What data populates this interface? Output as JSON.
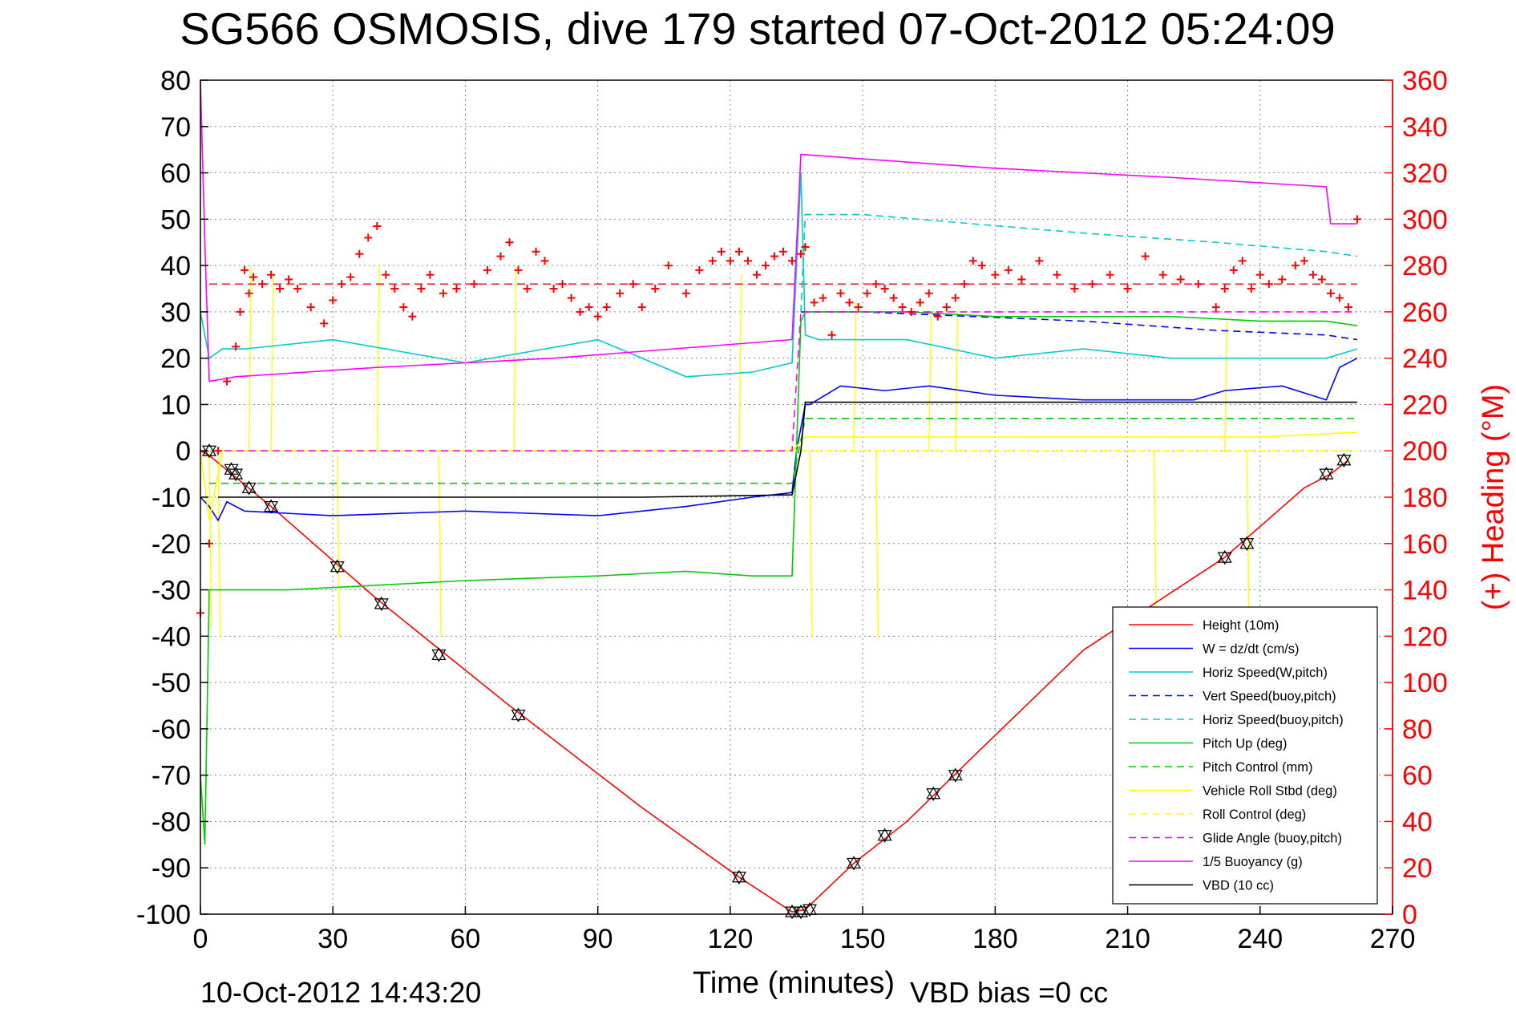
{
  "chart_data": {
    "type": "line",
    "title": "SG566 OSMOSIS, dive 179 started 07-Oct-2012 05:24:09",
    "xlabel": "Time (minutes)",
    "ylabel_right": "(+) Heading (°M)",
    "xlim": [
      0,
      270
    ],
    "ylim_left": [
      -100,
      80
    ],
    "ylim_right": [
      0,
      360
    ],
    "x_ticks": [
      "0",
      "30",
      "60",
      "90",
      "120",
      "150",
      "180",
      "210",
      "240",
      "270"
    ],
    "y_ticks_left": [
      "80",
      "70",
      "60",
      "50",
      "40",
      "30",
      "20",
      "10",
      "0",
      "-10",
      "-20",
      "-30",
      "-40",
      "-50",
      "-60",
      "-70",
      "-80",
      "-90",
      "-100"
    ],
    "y_ticks_right": [
      "360",
      "340",
      "320",
      "300",
      "280",
      "260",
      "240",
      "220",
      "200",
      "180",
      "160",
      "140",
      "120",
      "100",
      "80",
      "60",
      "40",
      "20",
      "0"
    ],
    "grid": true,
    "legend_position": "lower-right",
    "footer_left": "10-Oct-2012 14:43:20",
    "footer_right": "VBD bias =0 cc",
    "series": [
      {
        "name": "Height (10m)",
        "color": "#ff0000",
        "style": "solid",
        "x": [
          0,
          2,
          16,
          40,
          70,
          100,
          122,
          134,
          137,
          148,
          160,
          175,
          200,
          232,
          250,
          256,
          260
        ],
        "y": [
          0,
          -1,
          -12,
          -32,
          -55,
          -77,
          -92,
          -99.5,
          -99,
          -89,
          -80,
          -66,
          -43,
          -23,
          -8,
          -5,
          -2
        ]
      },
      {
        "name": "W = dz/dt (cm/s)",
        "color": "#0000ff",
        "style": "solid",
        "x": [
          0,
          2,
          4,
          6,
          10,
          30,
          60,
          90,
          110,
          125,
          134,
          135,
          137,
          138,
          145,
          155,
          165,
          180,
          200,
          225,
          232,
          245,
          255,
          258,
          262
        ],
        "y": [
          -10,
          -12,
          -15,
          -11,
          -13,
          -14,
          -13,
          -14,
          -12,
          -10,
          -9,
          0,
          10,
          10,
          14,
          13,
          14,
          12,
          11,
          11,
          13,
          14,
          11,
          18,
          20
        ]
      },
      {
        "name": "Horiz Speed(W,pitch)",
        "color": "#00cccc",
        "style": "solid",
        "x": [
          0,
          2,
          5,
          10,
          30,
          60,
          90,
          110,
          125,
          134,
          136,
          137,
          140,
          160,
          180,
          200,
          220,
          240,
          250,
          255,
          262
        ],
        "y": [
          30,
          20,
          22,
          22,
          24,
          19,
          24,
          16,
          17,
          19,
          60,
          25,
          24,
          24,
          20,
          22,
          20,
          20,
          20,
          20,
          22
        ]
      },
      {
        "name": "Vert Speed(buoy,pitch)",
        "color": "#0000ff",
        "style": "dashed",
        "x": [
          136,
          150,
          175,
          200,
          230,
          255,
          262
        ],
        "y": [
          30,
          30,
          29,
          28,
          26,
          25,
          24
        ]
      },
      {
        "name": "Horiz Speed(buoy,pitch)",
        "color": "#00cccc",
        "style": "dashed",
        "x": [
          136,
          137,
          150,
          175,
          200,
          230,
          255,
          262
        ],
        "y": [
          30,
          51,
          51,
          49,
          47,
          45,
          43,
          42
        ]
      },
      {
        "name": "Pitch Up (deg)",
        "color": "#00cc00",
        "style": "solid",
        "x": [
          0,
          1,
          2,
          4,
          8,
          20,
          40,
          60,
          90,
          110,
          125,
          134,
          136,
          137,
          140,
          160,
          180,
          200,
          220,
          240,
          255,
          262
        ],
        "y": [
          -70,
          -85,
          -30,
          -30,
          -30,
          -30,
          -29,
          -28,
          -27,
          -26,
          -27,
          -27,
          28,
          30,
          30,
          30,
          29,
          29,
          29,
          28,
          28,
          27
        ]
      },
      {
        "name": "Pitch Control (mm)",
        "color": "#00cc00",
        "style": "dashed",
        "x": [
          2,
          10,
          60,
          134,
          137,
          200,
          262
        ],
        "y": [
          -7,
          -7,
          -7,
          -7,
          7,
          7,
          7
        ]
      },
      {
        "name": "Vehicle Roll Stbd (deg)",
        "color": "#ffff00",
        "style": "solid",
        "x": [
          0,
          2,
          5,
          10,
          40,
          80,
          120,
          134,
          137,
          160,
          200,
          240,
          262
        ],
        "y": [
          0,
          -15,
          0,
          0,
          0,
          0,
          0,
          0,
          3,
          3,
          3,
          3,
          4
        ]
      },
      {
        "name": "Roll Control (deg)",
        "color": "#ffff00",
        "style": "dashed",
        "x": [
          0,
          262
        ],
        "y": [
          0,
          0
        ]
      },
      {
        "name": "Glide Angle (buoy,pitch)",
        "color": "#ff00ff",
        "style": "dashed",
        "x": [
          0,
          134,
          136,
          262
        ],
        "y": [
          0,
          0,
          30,
          30
        ]
      },
      {
        "name": "1/5 Buoyancy (g)",
        "color": "#ff00ff",
        "style": "solid",
        "x": [
          0,
          1,
          2,
          8,
          40,
          80,
          134,
          136,
          150,
          180,
          220,
          255,
          256,
          262
        ],
        "y": [
          80,
          45,
          15,
          16,
          18,
          20,
          24,
          64,
          63,
          61,
          59,
          57,
          49,
          49
        ]
      },
      {
        "name": "VBD (10 cc)",
        "color": "#000000",
        "style": "solid",
        "x": [
          4,
          10,
          60,
          100,
          134,
          136,
          137,
          262
        ],
        "y": [
          -10,
          -10,
          -10,
          -10,
          -9.5,
          0,
          10.5,
          10.5
        ]
      }
    ],
    "heading_series": {
      "name": "Heading (°M)",
      "color": "#ff0000",
      "marker": "+",
      "x": [
        0,
        2,
        4,
        6,
        8,
        9,
        10,
        11,
        12,
        14,
        16,
        18,
        20,
        22,
        25,
        28,
        30,
        32,
        34,
        36,
        38,
        40,
        42,
        44,
        46,
        48,
        50,
        52,
        55,
        58,
        62,
        65,
        68,
        70,
        72,
        74,
        76,
        78,
        80,
        82,
        84,
        86,
        88,
        90,
        92,
        95,
        98,
        100,
        103,
        106,
        110,
        113,
        116,
        118,
        120,
        122,
        124,
        126,
        128,
        130,
        132,
        134,
        136,
        137,
        139,
        141,
        143,
        145,
        147,
        149,
        151,
        153,
        155,
        157,
        159,
        161,
        163,
        165,
        167,
        169,
        171,
        173,
        175,
        177,
        180,
        183,
        186,
        190,
        194,
        198,
        202,
        206,
        210,
        214,
        218,
        222,
        226,
        230,
        232,
        234,
        236,
        238,
        240,
        242,
        245,
        248,
        250,
        252,
        254,
        256,
        258,
        260,
        262
      ],
      "y": [
        130,
        160,
        200,
        230,
        245,
        260,
        278,
        268,
        275,
        272,
        276,
        270,
        274,
        270,
        262,
        255,
        265,
        272,
        275,
        285,
        292,
        297,
        276,
        270,
        262,
        258,
        270,
        276,
        268,
        270,
        272,
        278,
        284,
        290,
        278,
        270,
        286,
        282,
        270,
        272,
        266,
        260,
        262,
        258,
        262,
        268,
        272,
        262,
        270,
        280,
        268,
        278,
        282,
        286,
        282,
        286,
        282,
        276,
        280,
        284,
        286,
        282,
        285,
        288,
        264,
        266,
        250,
        268,
        264,
        262,
        268,
        272,
        270,
        266,
        262,
        260,
        264,
        268,
        258,
        262,
        266,
        272,
        282,
        280,
        276,
        278,
        274,
        282,
        276,
        270,
        272,
        276,
        270,
        284,
        276,
        274,
        272,
        262,
        270,
        278,
        282,
        270,
        276,
        272,
        274,
        280,
        282,
        276,
        274,
        268,
        266,
        262,
        300
      ]
    },
    "spikes": [
      {
        "x": [
          2,
          2.5
        ],
        "y": [
          0,
          -38
        ],
        "color": "#ffff00"
      },
      {
        "x": [
          4,
          4.5
        ],
        "y": [
          0,
          -40
        ],
        "color": "#ffff00"
      },
      {
        "x": [
          31,
          31.5
        ],
        "y": [
          -1,
          -40
        ],
        "color": "#ffff00"
      },
      {
        "x": [
          54,
          54.5
        ],
        "y": [
          -1,
          -40
        ],
        "color": "#ffff00"
      },
      {
        "x": [
          138,
          138.5
        ],
        "y": [
          0,
          -40
        ],
        "color": "#ffff00"
      },
      {
        "x": [
          153,
          153.5
        ],
        "y": [
          0,
          -40
        ],
        "color": "#ffff00"
      },
      {
        "x": [
          216,
          216.5
        ],
        "y": [
          0,
          -38
        ],
        "color": "#ffff00"
      },
      {
        "x": [
          237,
          237.5
        ],
        "y": [
          0,
          -38
        ],
        "color": "#ffff00"
      },
      {
        "x": [
          11,
          11.5
        ],
        "y": [
          0,
          40
        ],
        "color": "#ffff00"
      },
      {
        "x": [
          16,
          16.5
        ],
        "y": [
          0,
          38
        ],
        "color": "#ffff00"
      },
      {
        "x": [
          40,
          40.5
        ],
        "y": [
          0,
          40
        ],
        "color": "#ffff00"
      },
      {
        "x": [
          71,
          71.5
        ],
        "y": [
          0,
          40
        ],
        "color": "#ffff00"
      },
      {
        "x": [
          122,
          122.5
        ],
        "y": [
          0,
          38
        ],
        "color": "#ffff00"
      },
      {
        "x": [
          148,
          148.5
        ],
        "y": [
          0,
          32
        ],
        "color": "#ffff00"
      },
      {
        "x": [
          165,
          165.5
        ],
        "y": [
          0,
          30
        ],
        "color": "#ffff00"
      },
      {
        "x": [
          171,
          171.5
        ],
        "y": [
          0,
          30
        ],
        "color": "#ffff00"
      },
      {
        "x": [
          232,
          232.5
        ],
        "y": [
          0,
          28
        ],
        "color": "#ffff00"
      }
    ],
    "triangle_markers": {
      "x": [
        2,
        7,
        8,
        11,
        16,
        31,
        41,
        54,
        72,
        122,
        134,
        136,
        138,
        148,
        155,
        166,
        171,
        232,
        237,
        255,
        259
      ],
      "y": [
        0,
        -4,
        -5,
        -8,
        -12,
        -25,
        -33,
        -44,
        -57,
        -92,
        -99.5,
        -99.5,
        -99,
        -89,
        -83,
        -74,
        -70,
        -23,
        -20,
        -5,
        -2
      ]
    },
    "heading_reference": {
      "value": 272,
      "color": "#ff0000",
      "style": "dashed"
    }
  }
}
